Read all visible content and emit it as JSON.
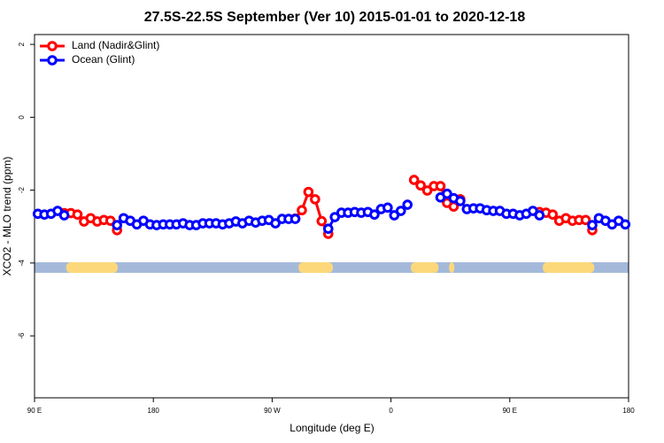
{
  "chart_data": {
    "type": "line",
    "title": "27.5S-22.5S September (Ver 10)   2015-01-01 to 2020-12-18",
    "x_label": "Longitude (deg E)",
    "y_label": "XCO2 - MLO trend (ppm)",
    "x": [
      92.5,
      97.5,
      102.5,
      107.5,
      112.5,
      117.5,
      122.5,
      127.5,
      132.5,
      137.5,
      142.5,
      147.5,
      152.5,
      157.5,
      162.5,
      167.5,
      172.5,
      177.5,
      182.5,
      187.5,
      192.5,
      197.5,
      202.5,
      207.5,
      212.5,
      217.5,
      222.5,
      227.5,
      232.5,
      237.5,
      242.5,
      247.5,
      252.5,
      257.5,
      262.5,
      267.5,
      272.5,
      277.5,
      282.5,
      287.5,
      292.5,
      297.5,
      302.5,
      307.5,
      312.5,
      317.5,
      322.5,
      327.5,
      332.5,
      337.5,
      342.5,
      347.5,
      352.5,
      357.5,
      362.5,
      367.5,
      372.5,
      377.5,
      382.5,
      387.5,
      392.5,
      397.5,
      402.5,
      407.5,
      412.5,
      417.5,
      422.5,
      427.5,
      432.5,
      437.5,
      442.5,
      447.5,
      452.5,
      457.5,
      462.5,
      467.5,
      472.5,
      477.5,
      482.5,
      487.5,
      492.5,
      497.5,
      502.5,
      507.5,
      512.5,
      517.5,
      522.5,
      527.5,
      532.5,
      537.5
    ],
    "series": [
      {
        "name": "Land (Nadir&Glint)",
        "color": "#ff0000",
        "values": [
          null,
          null,
          null,
          null,
          -2.63,
          -2.63,
          -2.67,
          -2.86,
          -2.77,
          -2.86,
          -2.82,
          -2.84,
          -3.1,
          null,
          null,
          null,
          null,
          null,
          null,
          null,
          null,
          null,
          null,
          null,
          null,
          null,
          null,
          null,
          null,
          null,
          null,
          null,
          null,
          null,
          null,
          null,
          null,
          null,
          null,
          -2.78,
          -2.55,
          -2.05,
          -2.25,
          -2.85,
          -3.2,
          null,
          null,
          null,
          null,
          null,
          null,
          null,
          null,
          null,
          null,
          null,
          null,
          -1.72,
          -1.87,
          -2.01,
          -1.89,
          -1.89,
          -2.35,
          -2.45,
          -2.25,
          null,
          null,
          null,
          null,
          null,
          null,
          null,
          null,
          null,
          null,
          null,
          -2.6,
          -2.62,
          -2.67,
          -2.84,
          -2.77,
          -2.84,
          -2.82,
          -2.82,
          -3.1,
          null,
          null,
          null,
          null,
          null
        ]
      },
      {
        "name": "Ocean (Glint)",
        "color": "#0000ff",
        "values": [
          -2.65,
          -2.67,
          -2.65,
          -2.57,
          -2.69,
          null,
          null,
          null,
          null,
          null,
          null,
          null,
          -2.96,
          -2.77,
          -2.84,
          -2.94,
          -2.84,
          -2.94,
          -2.96,
          -2.94,
          -2.94,
          -2.94,
          -2.91,
          -2.96,
          -2.96,
          -2.91,
          -2.91,
          -2.91,
          -2.94,
          -2.91,
          -2.86,
          -2.91,
          -2.84,
          -2.89,
          -2.84,
          -2.82,
          -2.91,
          -2.79,
          -2.79,
          -2.79,
          null,
          null,
          null,
          null,
          -3.06,
          -2.74,
          -2.62,
          -2.62,
          -2.6,
          -2.62,
          -2.6,
          -2.67,
          -2.52,
          -2.48,
          -2.69,
          -2.57,
          -2.4,
          null,
          null,
          null,
          null,
          -2.2,
          -2.1,
          -2.22,
          -2.3,
          -2.52,
          -2.5,
          -2.5,
          -2.55,
          -2.57,
          -2.57,
          -2.65,
          -2.65,
          -2.69,
          -2.65,
          -2.57,
          -2.69,
          null,
          null,
          null,
          null,
          null,
          null,
          null,
          -2.96,
          -2.77,
          -2.84,
          -2.94,
          -2.84,
          -2.94
        ]
      }
    ],
    "xlim": [
      90,
      540
    ],
    "xticks": [
      {
        "value": 90,
        "label": "90 E"
      },
      180,
      {
        "value": 270,
        "label": "90 W"
      },
      {
        "value": 360,
        "label": "0"
      },
      {
        "value": 450,
        "label": "90 E"
      },
      {
        "value": 540,
        "label": "180"
      }
    ],
    "ylim": [
      -7.7,
      2.27
    ],
    "yticks": [
      2,
      0,
      -2,
      -4,
      -6
    ],
    "grid": false,
    "legend": "top-left",
    "mask": {
      "ylim": [
        -4.27,
        -3.98
      ],
      "ocean_color": "#a4b9da",
      "land_color": "#fcd87a",
      "land_ranges": [
        [
          114,
          153
        ],
        [
          290,
          316
        ],
        [
          375,
          396
        ],
        [
          404,
          408
        ],
        [
          475,
          514
        ]
      ]
    }
  }
}
